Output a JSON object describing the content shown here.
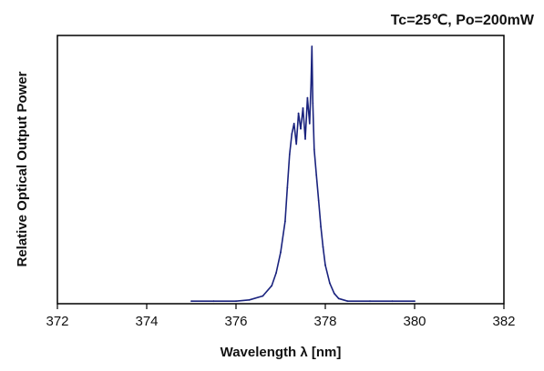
{
  "chart_data": {
    "type": "line",
    "title": "",
    "annotation": "Tc=25℃, Po=200mW",
    "xlabel": "Wavelength λ [nm]",
    "ylabel": "Relative Optical Output Power",
    "xlim": [
      372,
      382
    ],
    "ylim": [
      0,
      1
    ],
    "x_ticks": [
      372,
      374,
      376,
      378,
      380,
      382
    ],
    "y_ticks": [],
    "grid": false,
    "legend": "none",
    "line_color": "#1a237e",
    "series": [
      {
        "x": [
          375.0,
          375.5,
          376.0,
          376.3,
          376.6,
          376.8,
          376.9,
          377.0,
          377.1,
          377.15,
          377.2,
          377.25,
          377.3,
          377.35,
          377.4,
          377.45,
          377.5,
          377.55,
          377.6,
          377.65,
          377.68,
          377.7,
          377.72,
          377.75,
          377.8,
          377.85,
          377.9,
          377.95,
          378.0,
          378.1,
          378.2,
          378.3,
          378.5,
          379.0,
          379.5,
          380.0
        ],
        "y": [
          0.01,
          0.01,
          0.01,
          0.015,
          0.03,
          0.07,
          0.12,
          0.2,
          0.32,
          0.45,
          0.58,
          0.66,
          0.7,
          0.62,
          0.74,
          0.68,
          0.76,
          0.64,
          0.8,
          0.7,
          0.85,
          1.0,
          0.78,
          0.6,
          0.5,
          0.4,
          0.3,
          0.22,
          0.15,
          0.08,
          0.04,
          0.02,
          0.01,
          0.01,
          0.01,
          0.01
        ]
      }
    ]
  }
}
